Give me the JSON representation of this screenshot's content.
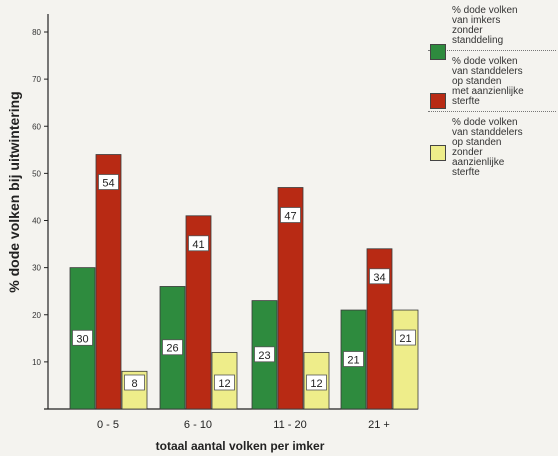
{
  "chart_data": {
    "type": "bar",
    "title": "",
    "xlabel": "totaal aantal volken per imker",
    "ylabel": "% dode volken bij uitwintering",
    "categories": [
      "0 - 5",
      "6 - 10",
      "11 - 20",
      "21 +"
    ],
    "ylim": [
      0,
      85
    ],
    "yticks": [
      0,
      10,
      20,
      30,
      40,
      50,
      60,
      70,
      80
    ],
    "grid": false,
    "legend_position": "right",
    "series": [
      {
        "name": "% dode volken\nvan imkers\nzonder\nstanddeling",
        "color": "#2e8b3e",
        "values": [
          30,
          26,
          23,
          21
        ]
      },
      {
        "name": "% dode volken\nvan standdelers\nop standen\nmet aanzienlijke\nsterfte",
        "color": "#b82a14",
        "values": [
          54,
          41,
          47,
          34
        ]
      },
      {
        "name": "% dode volken\nvan standdelers\nop standen\nzonder\naanzienlijke\nsterfte",
        "color": "#eeed8a",
        "values": [
          8,
          12,
          12,
          21
        ]
      }
    ],
    "data_labels": true
  }
}
